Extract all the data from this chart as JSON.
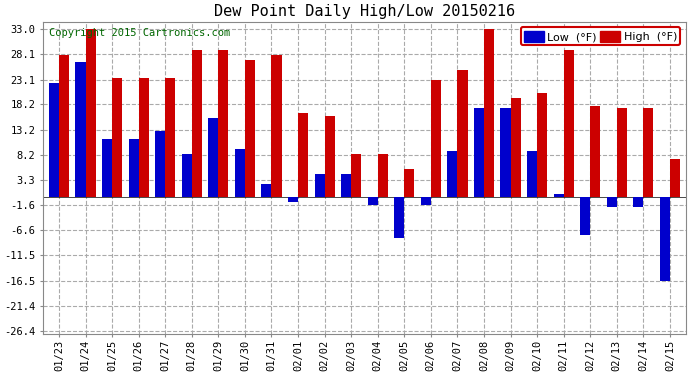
{
  "title": "Dew Point Daily High/Low 20150216",
  "copyright": "Copyright 2015 Cartronics.com",
  "dates": [
    "01/23",
    "01/24",
    "01/25",
    "01/26",
    "01/27",
    "01/28",
    "01/29",
    "01/30",
    "01/31",
    "02/01",
    "02/02",
    "02/03",
    "02/04",
    "02/05",
    "02/06",
    "02/07",
    "02/08",
    "02/09",
    "02/10",
    "02/11",
    "02/12",
    "02/13",
    "02/14",
    "02/15"
  ],
  "high_values": [
    28.0,
    33.0,
    23.5,
    23.5,
    23.5,
    29.0,
    29.0,
    27.0,
    28.0,
    16.5,
    16.0,
    8.5,
    8.5,
    5.5,
    23.0,
    25.0,
    33.0,
    19.5,
    20.5,
    29.0,
    18.0,
    17.5,
    17.5,
    7.5
  ],
  "low_values": [
    22.5,
    26.5,
    11.5,
    11.5,
    13.0,
    8.5,
    15.5,
    9.5,
    2.5,
    -1.0,
    4.5,
    4.5,
    -1.5,
    -8.0,
    -1.5,
    9.0,
    17.5,
    17.5,
    9.0,
    0.5,
    -7.5,
    -2.0,
    -2.0,
    -16.5
  ],
  "bar_width": 0.38,
  "low_color": "#0000cc",
  "high_color": "#cc0000",
  "bg_color": "#ffffff",
  "grid_color": "#aaaaaa",
  "yticks": [
    33.0,
    28.1,
    23.1,
    18.2,
    13.2,
    8.2,
    3.3,
    -1.6,
    -6.6,
    -11.5,
    -16.5,
    -21.4,
    -26.4
  ],
  "ylim": [
    -27,
    34.5
  ],
  "title_fontsize": 11,
  "legend_fontsize": 8,
  "tick_fontsize": 7.5,
  "copyright_fontsize": 7.5
}
